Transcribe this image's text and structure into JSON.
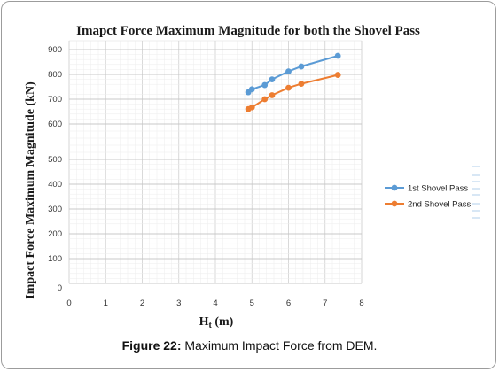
{
  "chart_data": {
    "type": "line",
    "title": "Imapct Force Maximum Magnitude for both the Shovel Pass",
    "xlabel": "Ht (m)",
    "xlabel_main": "H",
    "xlabel_sub": "t",
    "xlabel_unit": " (m)",
    "ylabel": "Impact Force Maximum Magnitude (kN)",
    "xlim": [
      0,
      8
    ],
    "x_ticks": [
      "0",
      "1",
      "2",
      "3",
      "4",
      "5",
      "6",
      "7",
      "8"
    ],
    "y_ticks": [
      "0",
      "100",
      "200",
      "300",
      "400",
      "500",
      "600",
      "700",
      "800",
      "900"
    ],
    "grid": true,
    "legend_position": "right",
    "series": [
      {
        "name": "1st Shovel Pass",
        "color": "#5b9bd5",
        "x": [
          4.9,
          5.0,
          5.35,
          5.55,
          6.0,
          6.35,
          7.35
        ],
        "y": [
          728,
          740,
          757,
          780,
          812,
          832,
          875
        ]
      },
      {
        "name": "2nd Shovel Pass",
        "color": "#ed7d31",
        "x": [
          4.9,
          5.0,
          5.35,
          5.55,
          6.0,
          6.35,
          7.35
        ],
        "y": [
          660,
          667,
          700,
          716,
          746,
          762,
          798
        ]
      }
    ]
  },
  "caption": {
    "label": "Figure 22:",
    "text": " Maximum Impact Force from DEM."
  }
}
